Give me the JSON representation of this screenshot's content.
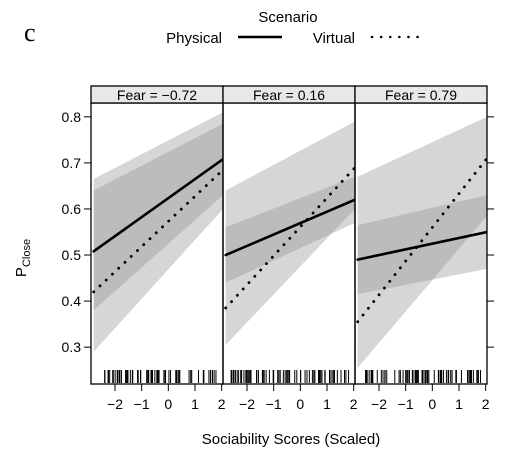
{
  "chart_data": {
    "type": "line",
    "figure_letter": "c",
    "legend": {
      "title": "Scenario",
      "placement": "top-center",
      "entries": [
        {
          "name": "Physical",
          "style": "solid"
        },
        {
          "name": "Virtual",
          "style": "dotted"
        }
      ]
    },
    "xlabel": "Sociability Scores (Scaled)",
    "ylabel_main": "P",
    "ylabel_sub": "Close",
    "xlim": [
      -2.9,
      2.05
    ],
    "ylim": [
      0.22,
      0.83
    ],
    "xticks": [
      -2,
      -1,
      0,
      1,
      2
    ],
    "yticks": [
      0.3,
      0.4,
      0.5,
      0.6,
      0.7,
      0.8
    ],
    "xtick_labels": [
      "−2",
      "−1",
      "0",
      "1",
      "2"
    ],
    "ytick_labels": [
      "0.3",
      "0.4",
      "0.5",
      "0.6",
      "0.7",
      "0.8"
    ],
    "grid": false,
    "rug": true,
    "panels": [
      {
        "strip": "Fear = −0.72",
        "series": [
          {
            "name": "Physical",
            "style": "solid",
            "x": [
              -2.8,
              2.05
            ],
            "y": [
              0.508,
              0.708
            ],
            "ci_lower": [
              0.38,
              0.63
            ],
            "ci_upper": [
              0.64,
              0.785
            ]
          },
          {
            "name": "Virtual",
            "style": "dotted",
            "x": [
              -2.8,
              2.05
            ],
            "y": [
              0.42,
              0.685
            ],
            "ci_lower": [
              0.29,
              0.6
            ],
            "ci_upper": [
              0.665,
              0.81
            ]
          }
        ]
      },
      {
        "strip": "Fear = 0.16",
        "series": [
          {
            "name": "Physical",
            "style": "solid",
            "x": [
              -2.8,
              2.05
            ],
            "y": [
              0.5,
              0.62
            ],
            "ci_lower": [
              0.44,
              0.57
            ],
            "ci_upper": [
              0.56,
              0.67
            ]
          },
          {
            "name": "Virtual",
            "style": "dotted",
            "x": [
              -2.8,
              2.05
            ],
            "y": [
              0.385,
              0.69
            ],
            "ci_lower": [
              0.305,
              0.6
            ],
            "ci_upper": [
              0.64,
              0.79
            ]
          }
        ]
      },
      {
        "strip": "Fear = 0.79",
        "series": [
          {
            "name": "Physical",
            "style": "solid",
            "x": [
              -2.8,
              2.05
            ],
            "y": [
              0.49,
              0.55
            ],
            "ci_lower": [
              0.415,
              0.47
            ],
            "ci_upper": [
              0.565,
              0.63
            ]
          },
          {
            "name": "Virtual",
            "style": "dotted",
            "x": [
              -2.8,
              2.05
            ],
            "y": [
              0.355,
              0.71
            ],
            "ci_lower": [
              0.255,
              0.585
            ],
            "ci_upper": [
              0.67,
              0.8
            ]
          }
        ]
      }
    ]
  }
}
